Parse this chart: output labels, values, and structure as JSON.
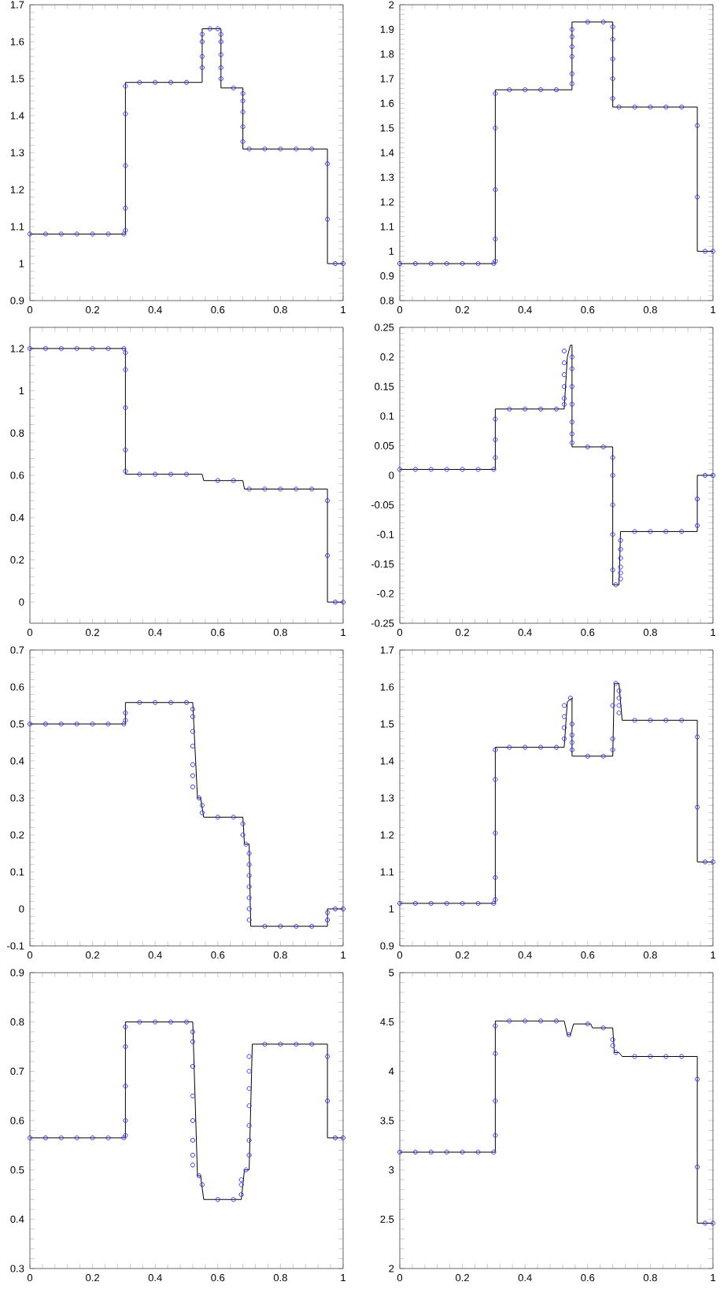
{
  "chart_data": [
    {
      "type": "line",
      "xlim": [
        0,
        1
      ],
      "xticks": [
        0,
        0.2,
        0.4,
        0.6,
        0.8,
        1
      ],
      "ylim": [
        0.9,
        1.7
      ],
      "yticks": [
        0.9,
        1,
        1.1,
        1.2,
        1.3,
        1.4,
        1.5,
        1.6,
        1.7
      ],
      "series": [
        {
          "type": "line",
          "color": "#000000",
          "x": [
            0,
            0.305,
            0.305,
            0.55,
            0.55,
            0.61,
            0.61,
            0.68,
            0.68,
            0.95,
            0.95,
            1
          ],
          "values": [
            1.08,
            1.08,
            1.49,
            1.49,
            1.635,
            1.635,
            1.475,
            1.475,
            1.31,
            1.31,
            1.0,
            1.0
          ]
        },
        {
          "type": "scatter",
          "color": "#3333ff",
          "marker": "circle",
          "x": [
            0,
            0.05,
            0.1,
            0.15,
            0.2,
            0.25,
            0.3,
            0.305,
            0.305,
            0.305,
            0.305,
            0.305,
            0.35,
            0.4,
            0.45,
            0.5,
            0.55,
            0.55,
            0.55,
            0.55,
            0.575,
            0.6,
            0.61,
            0.61,
            0.61,
            0.61,
            0.61,
            0.65,
            0.68,
            0.68,
            0.68,
            0.68,
            0.68,
            0.7,
            0.75,
            0.8,
            0.85,
            0.9,
            0.95,
            0.95,
            0.975,
            1
          ],
          "values": [
            1.08,
            1.08,
            1.08,
            1.08,
            1.08,
            1.08,
            1.08,
            1.09,
            1.15,
            1.265,
            1.405,
            1.48,
            1.49,
            1.49,
            1.49,
            1.49,
            1.53,
            1.56,
            1.6,
            1.62,
            1.635,
            1.635,
            1.62,
            1.6,
            1.565,
            1.53,
            1.5,
            1.475,
            1.46,
            1.44,
            1.41,
            1.37,
            1.33,
            1.31,
            1.31,
            1.31,
            1.31,
            1.31,
            1.27,
            1.12,
            1.0,
            1.0
          ]
        }
      ]
    },
    {
      "type": "line",
      "xlim": [
        0,
        1
      ],
      "xticks": [
        0,
        0.2,
        0.4,
        0.6,
        0.8,
        1
      ],
      "ylim": [
        0.8,
        2
      ],
      "yticks": [
        0.8,
        0.9,
        1,
        1.1,
        1.2,
        1.3,
        1.4,
        1.5,
        1.6,
        1.7,
        1.8,
        1.9,
        2
      ],
      "series": [
        {
          "type": "line",
          "color": "#000000",
          "x": [
            0,
            0.305,
            0.305,
            0.55,
            0.55,
            0.68,
            0.68,
            0.95,
            0.95,
            1
          ],
          "values": [
            0.95,
            0.95,
            1.655,
            1.655,
            1.93,
            1.93,
            1.585,
            1.585,
            1.0,
            1.0
          ]
        },
        {
          "type": "scatter",
          "color": "#3333ff",
          "marker": "circle",
          "x": [
            0,
            0.05,
            0.1,
            0.15,
            0.2,
            0.25,
            0.3,
            0.305,
            0.305,
            0.305,
            0.305,
            0.305,
            0.35,
            0.4,
            0.45,
            0.5,
            0.55,
            0.55,
            0.55,
            0.55,
            0.55,
            0.55,
            0.6,
            0.65,
            0.68,
            0.68,
            0.68,
            0.68,
            0.68,
            0.7,
            0.75,
            0.8,
            0.85,
            0.9,
            0.95,
            0.95,
            0.975,
            1
          ],
          "values": [
            0.95,
            0.95,
            0.95,
            0.95,
            0.95,
            0.95,
            0.95,
            0.96,
            1.05,
            1.25,
            1.5,
            1.64,
            1.655,
            1.655,
            1.655,
            1.655,
            1.68,
            1.72,
            1.79,
            1.83,
            1.87,
            1.9,
            1.93,
            1.93,
            1.91,
            1.86,
            1.78,
            1.7,
            1.62,
            1.585,
            1.585,
            1.585,
            1.585,
            1.585,
            1.51,
            1.22,
            1.0,
            1.0
          ]
        }
      ]
    },
    {
      "type": "line",
      "xlim": [
        0,
        1
      ],
      "xticks": [
        0,
        0.2,
        0.4,
        0.6,
        0.8,
        1
      ],
      "ylim": [
        -0.1,
        1.3
      ],
      "yticks": [
        0,
        0.2,
        0.4,
        0.6,
        0.8,
        1,
        1.2
      ],
      "series": [
        {
          "type": "line",
          "color": "#000000",
          "x": [
            0,
            0.305,
            0.305,
            0.55,
            0.555,
            0.68,
            0.685,
            0.95,
            0.95,
            1
          ],
          "values": [
            1.2,
            1.2,
            0.605,
            0.605,
            0.575,
            0.575,
            0.535,
            0.535,
            0,
            0
          ]
        },
        {
          "type": "scatter",
          "color": "#3333ff",
          "marker": "circle",
          "x": [
            0,
            0.05,
            0.1,
            0.15,
            0.2,
            0.25,
            0.3,
            0.305,
            0.305,
            0.305,
            0.305,
            0.305,
            0.35,
            0.4,
            0.45,
            0.5,
            0.6,
            0.65,
            0.7,
            0.75,
            0.8,
            0.85,
            0.9,
            0.95,
            0.95,
            0.975,
            1
          ],
          "values": [
            1.2,
            1.2,
            1.2,
            1.2,
            1.2,
            1.2,
            1.2,
            1.18,
            1.1,
            0.92,
            0.72,
            0.62,
            0.605,
            0.605,
            0.605,
            0.605,
            0.575,
            0.575,
            0.535,
            0.535,
            0.535,
            0.535,
            0.535,
            0.48,
            0.22,
            0,
            0
          ]
        }
      ]
    },
    {
      "type": "line",
      "xlim": [
        0,
        1
      ],
      "xticks": [
        0,
        0.2,
        0.4,
        0.6,
        0.8,
        1
      ],
      "ylim": [
        -0.25,
        0.25
      ],
      "yticks": [
        -0.25,
        -0.2,
        -0.15,
        -0.1,
        -0.05,
        0,
        0.05,
        0.1,
        0.15,
        0.2,
        0.25
      ],
      "series": [
        {
          "type": "line",
          "color": "#000000",
          "x": [
            0,
            0.305,
            0.305,
            0.525,
            0.535,
            0.545,
            0.55,
            0.55,
            0.68,
            0.68,
            0.7,
            0.705,
            0.95,
            0.95,
            1
          ],
          "values": [
            0.01,
            0.01,
            0.112,
            0.112,
            0.2,
            0.22,
            0.22,
            0.048,
            0.048,
            -0.185,
            -0.185,
            -0.095,
            -0.095,
            0,
            0
          ]
        },
        {
          "type": "scatter",
          "color": "#3333ff",
          "marker": "circle",
          "x": [
            0,
            0.05,
            0.1,
            0.15,
            0.2,
            0.25,
            0.3,
            0.305,
            0.305,
            0.305,
            0.35,
            0.4,
            0.45,
            0.5,
            0.525,
            0.525,
            0.525,
            0.525,
            0.525,
            0.525,
            0.55,
            0.55,
            0.55,
            0.55,
            0.55,
            0.55,
            0.55,
            0.6,
            0.65,
            0.68,
            0.68,
            0.68,
            0.68,
            0.68,
            0.69,
            0.705,
            0.705,
            0.705,
            0.705,
            0.705,
            0.705,
            0.75,
            0.8,
            0.85,
            0.9,
            0.95,
            0.95,
            0.975,
            1
          ],
          "values": [
            0.01,
            0.01,
            0.01,
            0.01,
            0.01,
            0.01,
            0.01,
            0.03,
            0.06,
            0.095,
            0.112,
            0.112,
            0.112,
            0.112,
            0.12,
            0.13,
            0.15,
            0.17,
            0.19,
            0.21,
            0.2,
            0.18,
            0.15,
            0.12,
            0.09,
            0.07,
            0.055,
            0.048,
            0.048,
            0.03,
            0,
            -0.05,
            -0.1,
            -0.16,
            -0.185,
            -0.175,
            -0.165,
            -0.155,
            -0.14,
            -0.125,
            -0.11,
            -0.095,
            -0.095,
            -0.095,
            -0.095,
            -0.085,
            -0.04,
            0,
            0
          ]
        }
      ]
    },
    {
      "type": "line",
      "xlim": [
        0,
        1
      ],
      "xticks": [
        0,
        0.2,
        0.4,
        0.6,
        0.8,
        1
      ],
      "ylim": [
        -0.1,
        0.7
      ],
      "yticks": [
        -0.1,
        0,
        0.1,
        0.2,
        0.3,
        0.4,
        0.5,
        0.6,
        0.7
      ],
      "series": [
        {
          "type": "line",
          "color": "#000000",
          "x": [
            0,
            0.305,
            0.305,
            0.52,
            0.535,
            0.545,
            0.555,
            0.68,
            0.685,
            0.7,
            0.705,
            0.95,
            0.95,
            1
          ],
          "values": [
            0.5,
            0.5,
            0.558,
            0.558,
            0.3,
            0.3,
            0.248,
            0.248,
            0.175,
            0.175,
            -0.047,
            -0.047,
            0,
            0
          ]
        },
        {
          "type": "scatter",
          "color": "#3333ff",
          "marker": "circle",
          "x": [
            0,
            0.05,
            0.1,
            0.15,
            0.2,
            0.25,
            0.3,
            0.305,
            0.305,
            0.35,
            0.4,
            0.45,
            0.5,
            0.52,
            0.52,
            0.52,
            0.52,
            0.52,
            0.52,
            0.52,
            0.54,
            0.55,
            0.55,
            0.6,
            0.65,
            0.68,
            0.68,
            0.69,
            0.7,
            0.7,
            0.7,
            0.7,
            0.7,
            0.7,
            0.7,
            0.75,
            0.8,
            0.85,
            0.9,
            0.95,
            0.95,
            0.975,
            1
          ],
          "values": [
            0.5,
            0.5,
            0.5,
            0.5,
            0.5,
            0.5,
            0.5,
            0.51,
            0.53,
            0.558,
            0.558,
            0.558,
            0.558,
            0.54,
            0.52,
            0.48,
            0.44,
            0.39,
            0.36,
            0.33,
            0.3,
            0.28,
            0.26,
            0.248,
            0.248,
            0.23,
            0.2,
            0.175,
            0.15,
            0.12,
            0.09,
            0.06,
            0.03,
            0,
            -0.03,
            -0.047,
            -0.047,
            -0.047,
            -0.047,
            -0.03,
            -0.01,
            0,
            0
          ]
        }
      ]
    },
    {
      "type": "line",
      "xlim": [
        0,
        1
      ],
      "xticks": [
        0,
        0.2,
        0.4,
        0.6,
        0.8,
        1
      ],
      "ylim": [
        0.9,
        1.7
      ],
      "yticks": [
        0.9,
        1,
        1.1,
        1.2,
        1.3,
        1.4,
        1.5,
        1.6,
        1.7
      ],
      "series": [
        {
          "type": "line",
          "color": "#000000",
          "x": [
            0,
            0.305,
            0.305,
            0.525,
            0.535,
            0.55,
            0.55,
            0.68,
            0.685,
            0.7,
            0.71,
            0.95,
            0.95,
            1
          ],
          "values": [
            1.015,
            1.015,
            1.437,
            1.437,
            1.56,
            1.57,
            1.413,
            1.413,
            1.61,
            1.61,
            1.51,
            1.51,
            1.127,
            1.127
          ]
        },
        {
          "type": "scatter",
          "color": "#3333ff",
          "marker": "circle",
          "x": [
            0,
            0.05,
            0.1,
            0.15,
            0.2,
            0.25,
            0.3,
            0.305,
            0.305,
            0.305,
            0.305,
            0.305,
            0.35,
            0.4,
            0.45,
            0.5,
            0.525,
            0.525,
            0.525,
            0.525,
            0.545,
            0.55,
            0.55,
            0.55,
            0.55,
            0.6,
            0.65,
            0.68,
            0.68,
            0.68,
            0.69,
            0.7,
            0.7,
            0.7,
            0.7,
            0.75,
            0.8,
            0.85,
            0.9,
            0.95,
            0.95,
            0.975,
            1
          ],
          "values": [
            1.015,
            1.015,
            1.015,
            1.015,
            1.015,
            1.015,
            1.015,
            1.025,
            1.085,
            1.205,
            1.35,
            1.43,
            1.437,
            1.437,
            1.437,
            1.437,
            1.46,
            1.49,
            1.52,
            1.55,
            1.57,
            1.5,
            1.47,
            1.45,
            1.43,
            1.413,
            1.413,
            1.43,
            1.46,
            1.55,
            1.61,
            1.59,
            1.57,
            1.55,
            1.53,
            1.51,
            1.51,
            1.51,
            1.51,
            1.465,
            1.275,
            1.127,
            1.127
          ]
        }
      ]
    },
    {
      "type": "line",
      "xlim": [
        0,
        1
      ],
      "xticks": [
        0,
        0.2,
        0.4,
        0.6,
        0.8,
        1
      ],
      "ylim": [
        0.3,
        0.9
      ],
      "yticks": [
        0.3,
        0.4,
        0.5,
        0.6,
        0.7,
        0.8,
        0.9
      ],
      "series": [
        {
          "type": "line",
          "color": "#000000",
          "x": [
            0,
            0.305,
            0.305,
            0.52,
            0.535,
            0.545,
            0.555,
            0.675,
            0.685,
            0.7,
            0.71,
            0.95,
            0.95,
            1
          ],
          "values": [
            0.565,
            0.565,
            0.8,
            0.8,
            0.488,
            0.488,
            0.44,
            0.44,
            0.5,
            0.5,
            0.755,
            0.755,
            0.565,
            0.565
          ]
        },
        {
          "type": "scatter",
          "color": "#3333ff",
          "marker": "circle",
          "x": [
            0,
            0.05,
            0.1,
            0.15,
            0.2,
            0.25,
            0.3,
            0.305,
            0.305,
            0.305,
            0.305,
            0.305,
            0.35,
            0.4,
            0.45,
            0.5,
            0.52,
            0.52,
            0.52,
            0.52,
            0.52,
            0.52,
            0.52,
            0.52,
            0.54,
            0.55,
            0.6,
            0.65,
            0.675,
            0.675,
            0.675,
            0.69,
            0.7,
            0.7,
            0.7,
            0.7,
            0.7,
            0.7,
            0.7,
            0.75,
            0.8,
            0.85,
            0.9,
            0.95,
            0.95,
            0.975,
            1
          ],
          "values": [
            0.565,
            0.565,
            0.565,
            0.565,
            0.565,
            0.565,
            0.565,
            0.57,
            0.6,
            0.67,
            0.75,
            0.79,
            0.8,
            0.8,
            0.8,
            0.8,
            0.78,
            0.76,
            0.71,
            0.65,
            0.6,
            0.56,
            0.53,
            0.51,
            0.488,
            0.47,
            0.44,
            0.44,
            0.45,
            0.47,
            0.48,
            0.5,
            0.53,
            0.56,
            0.59,
            0.63,
            0.665,
            0.7,
            0.73,
            0.755,
            0.755,
            0.755,
            0.755,
            0.73,
            0.64,
            0.565,
            0.565
          ]
        }
      ]
    },
    {
      "type": "line",
      "xlim": [
        0,
        1
      ],
      "xticks": [
        0,
        0.2,
        0.4,
        0.6,
        0.8,
        1
      ],
      "ylim": [
        2,
        5
      ],
      "yticks": [
        2,
        2.5,
        3,
        3.5,
        4,
        4.5,
        5
      ],
      "series": [
        {
          "type": "line",
          "color": "#000000",
          "x": [
            0,
            0.305,
            0.305,
            0.525,
            0.535,
            0.545,
            0.555,
            0.61,
            0.615,
            0.68,
            0.685,
            0.7,
            0.71,
            0.95,
            0.95,
            1
          ],
          "values": [
            3.18,
            3.18,
            4.51,
            4.51,
            4.37,
            4.37,
            4.48,
            4.48,
            4.44,
            4.44,
            4.19,
            4.19,
            4.15,
            4.15,
            2.46,
            2.46
          ]
        },
        {
          "type": "scatter",
          "color": "#3333ff",
          "marker": "circle",
          "x": [
            0,
            0.05,
            0.1,
            0.15,
            0.2,
            0.25,
            0.3,
            0.305,
            0.305,
            0.305,
            0.305,
            0.35,
            0.4,
            0.45,
            0.5,
            0.54,
            0.6,
            0.65,
            0.68,
            0.68,
            0.69,
            0.75,
            0.8,
            0.85,
            0.9,
            0.95,
            0.95,
            0.975,
            1
          ],
          "values": [
            3.18,
            3.18,
            3.18,
            3.18,
            3.18,
            3.18,
            3.18,
            3.35,
            3.7,
            4.18,
            4.46,
            4.51,
            4.51,
            4.51,
            4.51,
            4.37,
            4.48,
            4.44,
            4.32,
            4.26,
            4.19,
            4.15,
            4.15,
            4.15,
            4.15,
            3.92,
            3.03,
            2.46,
            2.46
          ]
        }
      ]
    }
  ]
}
